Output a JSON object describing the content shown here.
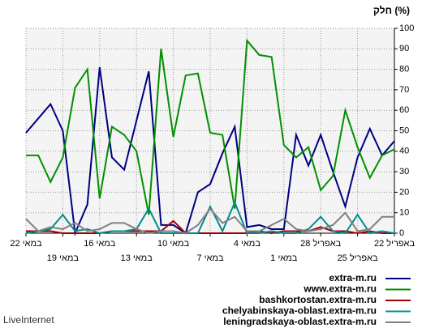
{
  "chart_data": {
    "type": "line",
    "y_label": "חלק (%)",
    "source": "LiveInternet",
    "categories": [
      "22 במאי",
      null,
      null,
      "19 במאי",
      null,
      null,
      "16 במאי",
      null,
      null,
      "13 במאי",
      null,
      null,
      "10 במאי",
      null,
      null,
      "7 במאי",
      null,
      null,
      "4 במאי",
      null,
      null,
      "1 במאי",
      null,
      null,
      "28 באפריל",
      null,
      null,
      "25 באפריל",
      null,
      null,
      "22 באפריל"
    ],
    "series": [
      {
        "name": "extra-m.ru",
        "color": "#000080",
        "values": [
          49,
          56,
          63,
          50,
          0,
          14,
          81,
          37,
          31,
          55,
          79,
          4,
          4,
          0,
          20,
          24,
          39,
          52,
          3,
          4,
          2,
          2,
          48,
          33,
          48,
          30,
          13,
          37,
          51,
          38,
          45
        ]
      },
      {
        "name": "www.extra-m.ru",
        "color": "#009000",
        "values": [
          38,
          38,
          25,
          37,
          71,
          80,
          17,
          52,
          48,
          40,
          9,
          90,
          47,
          77,
          78,
          49,
          48,
          12,
          94,
          87,
          86,
          43,
          37,
          42,
          21,
          28,
          60,
          42,
          27,
          38,
          41
        ]
      },
      {
        "name": "bashkortostan.extra-m.ru",
        "color": "#a00000",
        "values": [
          1,
          1,
          1,
          0,
          0,
          0,
          0,
          1,
          1,
          1,
          1,
          1,
          6,
          0,
          0,
          0,
          0,
          0,
          0,
          1,
          0,
          1,
          1,
          1,
          3,
          1,
          1,
          0,
          1,
          0,
          0
        ]
      },
      {
        "name": "chelyabinskaya-oblast.extra-m.ru",
        "color": "#008c8c",
        "values": [
          0,
          1,
          2,
          9,
          1,
          2,
          0,
          1,
          1,
          2,
          12,
          0,
          0,
          0,
          0,
          13,
          1,
          15,
          0,
          0,
          1,
          0,
          0,
          2,
          8,
          1,
          0,
          9,
          0,
          1,
          0
        ]
      },
      {
        "name": "leningradskaya-oblast.extra-m.ru",
        "color": "#808080",
        "values": [
          7,
          1,
          3,
          2,
          5,
          1,
          2,
          5,
          5,
          2,
          0,
          1,
          1,
          0,
          4,
          12,
          5,
          8,
          1,
          1,
          4,
          7,
          2,
          1,
          2,
          4,
          10,
          1,
          2,
          8,
          8
        ]
      }
    ],
    "ylim": [
      0,
      100
    ],
    "yticks": [
      0,
      10,
      20,
      30,
      40,
      50,
      60,
      70,
      80,
      90,
      100
    ],
    "grid": true
  }
}
